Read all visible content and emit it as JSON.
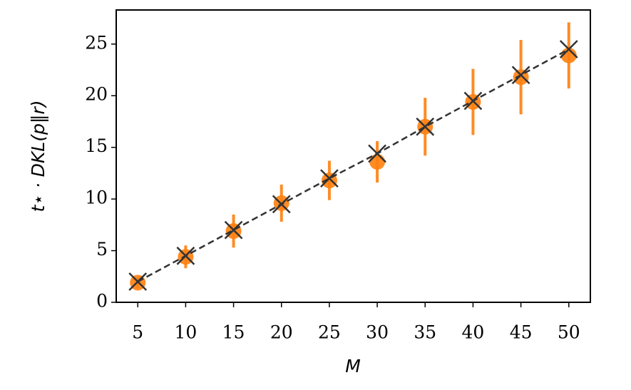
{
  "chart_data": {
    "type": "errorbar-scatter",
    "x_label": "M",
    "y_label": "t⋆ · DKL(p‖r)",
    "x": [
      5,
      10,
      15,
      20,
      25,
      30,
      35,
      40,
      45,
      50
    ],
    "series": [
      {
        "color": "#ff7f0e",
        "marker": "circle",
        "values": [
          1.9,
          4.4,
          6.9,
          9.6,
          11.8,
          13.6,
          17.0,
          19.4,
          21.8,
          23.9
        ],
        "errors": [
          0.5,
          1.1,
          1.6,
          1.8,
          1.9,
          2.0,
          2.8,
          3.2,
          3.6,
          3.2
        ]
      },
      {
        "color": "#333333",
        "marker": "x",
        "line": "dashed",
        "values": [
          2.0,
          4.5,
          7.0,
          9.5,
          12.0,
          14.4,
          17.0,
          19.5,
          22.0,
          24.5
        ]
      }
    ],
    "xlim": [
      2.75,
      52.25
    ],
    "ylim": [
      0,
      28.3
    ],
    "xticks": [
      5,
      10,
      15,
      20,
      25,
      30,
      35,
      40,
      45,
      50
    ],
    "yticks": [
      0,
      5,
      10,
      15,
      20,
      25
    ]
  }
}
